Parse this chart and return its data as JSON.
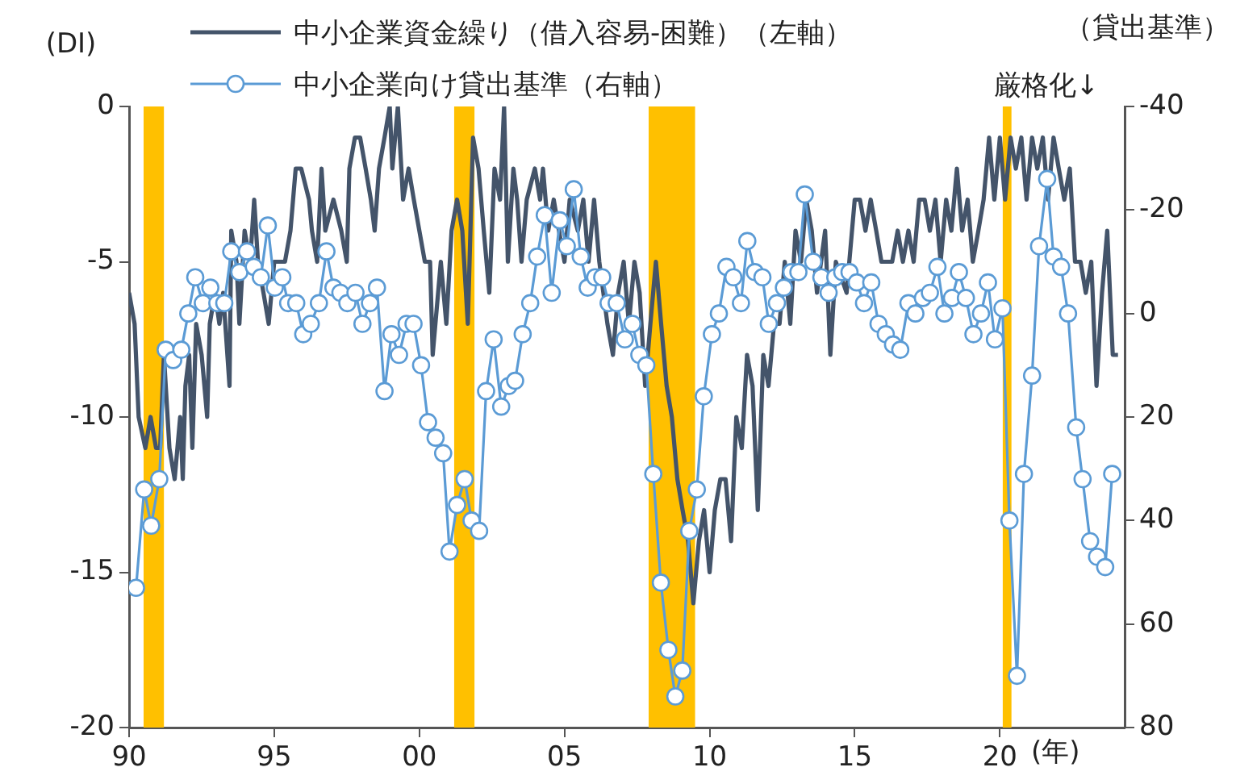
{
  "chart_data": {
    "type": "line",
    "xlabel": "(年)",
    "ylabel": "(DI)",
    "y2label": "（貸出基準）",
    "annotations": [
      "厳格化↓"
    ],
    "xlim": [
      1990,
      2024.3
    ],
    "xticks": [
      {
        "value": 1990,
        "label": "90"
      },
      {
        "value": 1995,
        "label": "95"
      },
      {
        "value": 2000,
        "label": "00"
      },
      {
        "value": 2005,
        "label": "05"
      },
      {
        "value": 2010,
        "label": "10"
      },
      {
        "value": 2015,
        "label": "15"
      },
      {
        "value": 2020,
        "label": "20"
      }
    ],
    "ylim": [
      -20,
      0
    ],
    "yticks": [
      -20,
      -15,
      -10,
      -5,
      0
    ],
    "y2lim": [
      80,
      -40
    ],
    "y2ticks": [
      -40,
      -20,
      0,
      20,
      40,
      60,
      80
    ],
    "grid": false,
    "legend": "top",
    "bands": [
      {
        "axis": "x",
        "from": 1990.5,
        "to": 1991.2,
        "color": "#ffc000"
      },
      {
        "axis": "x",
        "from": 2001.2,
        "to": 2001.9,
        "color": "#ffc000"
      },
      {
        "axis": "x",
        "from": 2007.9,
        "to": 2009.5,
        "color": "#ffc000"
      },
      {
        "axis": "x",
        "from": 2020.1,
        "to": 2020.4,
        "color": "#ffc000"
      }
    ],
    "series": [
      {
        "name": "中小企業資金繰り（借入容易-困難）（左軸）",
        "color": "#44546a",
        "marker": "none",
        "axis": "y",
        "x": [
          1990.0,
          1990.19,
          1990.33,
          1990.56,
          1990.74,
          1990.93,
          1991.07,
          1991.2,
          1991.39,
          1991.57,
          1991.76,
          1991.85,
          1991.94,
          1992.07,
          1992.18,
          1992.31,
          1992.5,
          1992.69,
          1992.78,
          1992.96,
          1993.11,
          1993.24,
          1993.46,
          1993.52,
          1993.7,
          1993.8,
          1993.98,
          1994.17,
          1994.31,
          1994.44,
          1994.63,
          1994.81,
          1995.0,
          1995.37,
          1995.56,
          1995.74,
          1995.93,
          1996.2,
          1996.3,
          1996.48,
          1996.63,
          1996.76,
          1997.04,
          1997.31,
          1997.5,
          1997.59,
          1997.78,
          1997.96,
          1998.15,
          1998.33,
          1998.46,
          1998.61,
          1998.8,
          1998.98,
          1999.07,
          1999.26,
          1999.44,
          1999.63,
          1999.81,
          2000.0,
          2000.19,
          2000.37,
          2000.46,
          2000.74,
          2000.93,
          2001.11,
          2001.3,
          2001.48,
          2001.67,
          2001.85,
          2002.04,
          2002.22,
          2002.41,
          2002.59,
          2002.78,
          2002.92,
          2003.05,
          2003.24,
          2003.37,
          2003.52,
          2003.7,
          2003.98,
          2004.16,
          2004.26,
          2004.44,
          2004.63,
          2004.81,
          2005.0,
          2005.18,
          2005.46,
          2005.65,
          2005.83,
          2006.02,
          2006.2,
          2006.48,
          2006.67,
          2006.85,
          2007.04,
          2007.22,
          2007.41,
          2007.59,
          2007.78,
          2007.96,
          2008.15,
          2008.33,
          2008.52,
          2008.7,
          2008.89,
          2009.07,
          2009.26,
          2009.44,
          2009.63,
          2009.81,
          2010.0,
          2010.18,
          2010.37,
          2010.55,
          2010.74,
          2010.92,
          2011.11,
          2011.29,
          2011.48,
          2011.66,
          2011.85,
          2012.03,
          2012.22,
          2012.41,
          2012.59,
          2012.78,
          2012.96,
          2013.15,
          2013.33,
          2013.52,
          2013.7,
          2013.98,
          2014.16,
          2014.35,
          2014.72,
          2015.0,
          2015.18,
          2015.37,
          2015.55,
          2015.74,
          2015.92,
          2016.29,
          2016.48,
          2016.66,
          2016.85,
          2017.03,
          2017.22,
          2017.41,
          2017.59,
          2017.78,
          2017.96,
          2018.15,
          2018.33,
          2018.52,
          2018.7,
          2018.89,
          2019.07,
          2019.26,
          2019.44,
          2019.63,
          2019.81,
          2020.0,
          2020.18,
          2020.37,
          2020.55,
          2020.74,
          2020.92,
          2021.11,
          2021.29,
          2021.48,
          2021.66,
          2021.85,
          2022.03,
          2022.22,
          2022.41,
          2022.59,
          2022.78,
          2022.96,
          2023.15,
          2023.33,
          2023.52,
          2023.7,
          2023.89,
          2024.07
        ],
        "values": [
          -6,
          -7,
          -10,
          -11,
          -10,
          -11,
          -11,
          -8,
          -11,
          -12,
          -10,
          -12,
          -9,
          -8,
          -11,
          -7,
          -8,
          -10,
          -7,
          -6,
          -7,
          -6,
          -9,
          -4,
          -5,
          -7,
          -4,
          -5,
          -3,
          -5,
          -6,
          -7,
          -5,
          -5,
          -4,
          -2,
          -2,
          -3,
          -4,
          -5,
          -2,
          -4,
          -3,
          -4,
          -5,
          -2,
          -1,
          -1,
          -2,
          -3,
          -4,
          -2,
          -1,
          0,
          -2,
          0,
          -3,
          -2,
          -3,
          -4,
          -5,
          -5,
          -8,
          -5,
          -7,
          -4,
          -3,
          -4,
          -7,
          -1,
          -2,
          -4,
          -6,
          -2,
          -3,
          0,
          -5,
          -2,
          -3,
          -5,
          -3,
          -2,
          -3,
          -2,
          -4,
          -3,
          -4,
          -5,
          -3,
          -4,
          -3,
          -5,
          -3,
          -5,
          -7,
          -8,
          -6,
          -5,
          -7,
          -5,
          -6,
          -9,
          -7,
          -5,
          -7,
          -9,
          -10,
          -12,
          -13,
          -14,
          -16,
          -14,
          -13,
          -15,
          -13,
          -12,
          -12,
          -14,
          -10,
          -11,
          -8,
          -9,
          -13,
          -8,
          -9,
          -7,
          -7,
          -5,
          -7,
          -4,
          -5,
          -3,
          -4,
          -6,
          -4,
          -8,
          -5,
          -6,
          -3,
          -3,
          -4,
          -3,
          -4,
          -5,
          -5,
          -4,
          -5,
          -4,
          -5,
          -3,
          -3,
          -4,
          -3,
          -5,
          -3,
          -4,
          -2,
          -4,
          -3,
          -5,
          -4,
          -3,
          -1,
          -3,
          -1,
          -3,
          -1,
          -2,
          -1,
          -3,
          -1,
          -2,
          -1,
          -3,
          -1,
          -2,
          -3,
          -2,
          -5,
          -5,
          -6,
          -5,
          -9,
          -6,
          -4,
          -8,
          -8
        ]
      },
      {
        "name": "中小企業向け貸出基準（右軸）",
        "color": "#5b9bd5",
        "marker": "circle",
        "axis": "y2",
        "x": [
          1990.24,
          1990.52,
          1990.76,
          1991.04,
          1991.26,
          1991.52,
          1991.8,
          1992.04,
          1992.28,
          1992.54,
          1992.8,
          1993.04,
          1993.28,
          1993.52,
          1993.8,
          1994.06,
          1994.3,
          1994.54,
          1994.78,
          1995.02,
          1995.28,
          1995.48,
          1995.76,
          1996.0,
          1996.26,
          1996.54,
          1996.8,
          1997.04,
          1997.28,
          1997.52,
          1997.8,
          1998.04,
          1998.3,
          1998.54,
          1998.8,
          1999.04,
          1999.3,
          1999.56,
          1999.8,
          2000.06,
          2000.3,
          2000.56,
          2000.82,
          2001.04,
          2001.3,
          2001.56,
          2001.8,
          2002.06,
          2002.3,
          2002.56,
          2002.82,
          2003.08,
          2003.3,
          2003.56,
          2003.82,
          2004.06,
          2004.32,
          2004.56,
          2004.84,
          2005.08,
          2005.32,
          2005.56,
          2005.8,
          2006.06,
          2006.3,
          2006.52,
          2006.8,
          2007.08,
          2007.34,
          2007.58,
          2007.82,
          2008.06,
          2008.32,
          2008.58,
          2008.82,
          2009.06,
          2009.3,
          2009.56,
          2009.8,
          2010.08,
          2010.32,
          2010.58,
          2010.82,
          2011.08,
          2011.3,
          2011.56,
          2011.82,
          2012.04,
          2012.32,
          2012.56,
          2012.82,
          2013.06,
          2013.28,
          2013.57,
          2013.85,
          2014.1,
          2014.33,
          2014.57,
          2014.82,
          2015.07,
          2015.32,
          2015.57,
          2015.82,
          2016.07,
          2016.32,
          2016.57,
          2016.85,
          2017.09,
          2017.35,
          2017.59,
          2017.85,
          2018.09,
          2018.35,
          2018.59,
          2018.83,
          2019.09,
          2019.35,
          2019.59,
          2019.83,
          2020.09,
          2020.33,
          2020.59,
          2020.83,
          2021.11,
          2021.35,
          2021.63,
          2021.85,
          2022.11,
          2022.35,
          2022.63,
          2022.85,
          2023.11,
          2023.35,
          2023.63,
          2023.87
        ],
        "values": [
          53,
          34,
          41,
          32,
          7,
          9,
          7,
          0,
          -7,
          -2,
          -5,
          -2,
          -2,
          -12,
          -8,
          -12,
          -9,
          -7,
          -17,
          -5,
          -7,
          -2,
          -2,
          4,
          2,
          -2,
          -12,
          -5,
          -4,
          -2,
          -4,
          2,
          -2,
          -5,
          15,
          4,
          8,
          2,
          2,
          10,
          21,
          24,
          27,
          46,
          37,
          32,
          40,
          42,
          15,
          5,
          18,
          14,
          13,
          4,
          -2,
          -11,
          -19,
          -4,
          -18,
          -13,
          -24,
          -11,
          -5,
          -7,
          -7,
          -2,
          -2,
          5,
          2,
          8,
          10,
          31,
          52,
          65,
          74,
          69,
          42,
          34,
          16,
          4,
          0,
          -9,
          -7,
          -2,
          -14,
          -8,
          -7,
          2,
          -2,
          -5,
          -8,
          -8,
          -23,
          -10,
          -7,
          -4,
          -7,
          -8,
          -8,
          -6,
          -2,
          -6,
          2,
          4,
          6,
          7,
          -2,
          0,
          -3,
          -4,
          -9,
          0,
          -3,
          -8,
          -3,
          4,
          0,
          -6,
          5,
          -1,
          40,
          70,
          31,
          12,
          -13,
          -26,
          -11,
          -9,
          0,
          22,
          32,
          44,
          47,
          49,
          31
        ]
      }
    ]
  }
}
